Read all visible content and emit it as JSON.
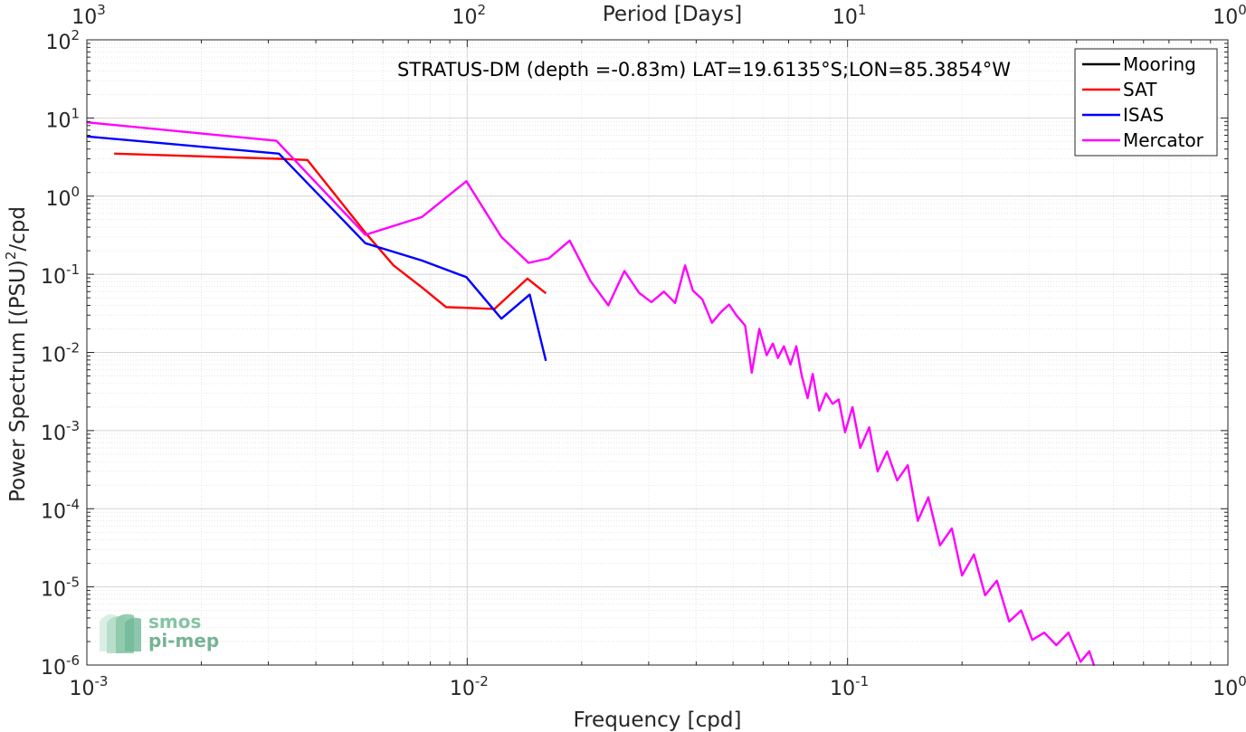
{
  "chart_data": {
    "type": "line",
    "title": "STRATUS-DM (depth =-0.83m) LAT=19.6135°S;LON=85.3854°W",
    "xlabel": "Frequency [cpd]",
    "ylabel": "Power Spectrum [(PSU)",
    "ylabel_sup": "2",
    "ylabel_tail": "/cpd",
    "top_xlabel": "Period [Days]",
    "xscale": "log",
    "yscale": "log",
    "xlim": [
      0.001,
      1
    ],
    "ylim": [
      1e-06,
      100
    ],
    "grid": true,
    "minor_grid": true,
    "legend_position": "top-right",
    "x_ticks": [
      {
        "value": 0.001,
        "base": "10",
        "exp": "-3"
      },
      {
        "value": 0.01,
        "base": "10",
        "exp": "-2"
      },
      {
        "value": 0.1,
        "base": "10",
        "exp": "-1"
      },
      {
        "value": 1,
        "base": "10",
        "exp": "0"
      }
    ],
    "y_ticks": [
      {
        "value": 100,
        "base": "10",
        "exp": "2"
      },
      {
        "value": 10,
        "base": "10",
        "exp": "1"
      },
      {
        "value": 1,
        "base": "10",
        "exp": "0"
      },
      {
        "value": 0.1,
        "base": "10",
        "exp": "-1"
      },
      {
        "value": 0.01,
        "base": "10",
        "exp": "-2"
      },
      {
        "value": 0.001,
        "base": "10",
        "exp": "-3"
      },
      {
        "value": 0.0001,
        "base": "10",
        "exp": "-4"
      },
      {
        "value": 1e-05,
        "base": "10",
        "exp": "-5"
      },
      {
        "value": 1e-06,
        "base": "10",
        "exp": "-6"
      }
    ],
    "top_ticks": [
      {
        "frequency": 0.001,
        "base": "10",
        "exp": "3"
      },
      {
        "frequency": 0.01,
        "base": "10",
        "exp": "2"
      },
      {
        "frequency": 0.1,
        "base": "10",
        "exp": "1"
      },
      {
        "frequency": 1,
        "base": "10",
        "exp": "0"
      }
    ],
    "series": [
      {
        "name": "Mooring",
        "color": "#000000",
        "x": [],
        "y": []
      },
      {
        "name": "SAT",
        "color": "#ff0000",
        "x": [
          0.00118,
          0.0032,
          0.0038,
          0.0054,
          0.0064,
          0.0076,
          0.0088,
          0.0118,
          0.0144,
          0.0161
        ],
        "y": [
          3.5,
          3.0,
          2.9,
          0.34,
          0.13,
          0.068,
          0.038,
          0.036,
          0.088,
          0.057
        ]
      },
      {
        "name": "ISAS",
        "color": "#0000ff",
        "x": [
          0.001,
          0.0032,
          0.0054,
          0.0076,
          0.00995,
          0.0123,
          0.0146,
          0.0161
        ],
        "y": [
          5.8,
          3.5,
          0.25,
          0.15,
          0.092,
          0.027,
          0.055,
          0.0078
        ]
      },
      {
        "name": "Mercator",
        "color": "#ff00ff",
        "x": [
          0.001,
          0.00315,
          0.0054,
          0.0076,
          0.00995,
          0.0123,
          0.0145,
          0.0164,
          0.0186,
          0.0211,
          0.0235,
          0.0259,
          0.0283,
          0.0305,
          0.0329,
          0.0352,
          0.0374,
          0.0392,
          0.0415,
          0.044,
          0.0465,
          0.0488,
          0.051,
          0.0538,
          0.056,
          0.0586,
          0.0613,
          0.0636,
          0.0656,
          0.068,
          0.0708,
          0.0733,
          0.0758,
          0.0785,
          0.081,
          0.0842,
          0.0878,
          0.0913,
          0.0948,
          0.0985,
          0.103,
          0.108,
          0.114,
          0.12,
          0.127,
          0.135,
          0.144,
          0.153,
          0.163,
          0.175,
          0.188,
          0.2,
          0.215,
          0.23,
          0.247,
          0.266,
          0.286,
          0.306,
          0.329,
          0.354,
          0.381,
          0.41,
          0.432,
          0.445
        ],
        "y": [
          8.8,
          5.1,
          0.32,
          0.54,
          1.55,
          0.3,
          0.14,
          0.16,
          0.27,
          0.082,
          0.04,
          0.11,
          0.058,
          0.044,
          0.06,
          0.043,
          0.13,
          0.062,
          0.048,
          0.024,
          0.033,
          0.041,
          0.03,
          0.022,
          0.0055,
          0.02,
          0.0092,
          0.013,
          0.0085,
          0.012,
          0.007,
          0.012,
          0.005,
          0.0026,
          0.0053,
          0.0018,
          0.003,
          0.0022,
          0.0025,
          0.00095,
          0.002,
          0.0006,
          0.0011,
          0.0003,
          0.00054,
          0.00023,
          0.00036,
          7e-05,
          0.00014,
          3.4e-05,
          5.6e-05,
          1.4e-05,
          2.6e-05,
          7.8e-06,
          1.2e-05,
          3.6e-06,
          5e-06,
          2.1e-06,
          2.6e-06,
          1.8e-06,
          2.6e-06,
          1.1e-06,
          1.5e-06,
          9.8e-07
        ]
      }
    ]
  },
  "logo": {
    "line1": "smos",
    "line2": "pi-mep"
  }
}
